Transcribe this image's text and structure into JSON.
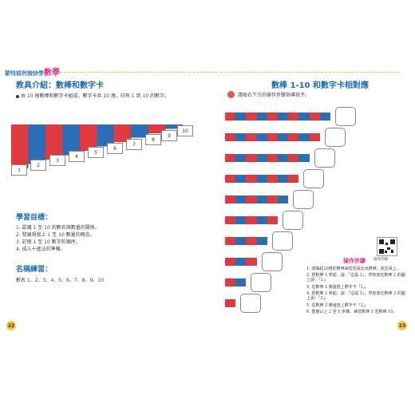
{
  "brand": {
    "prefix": "蒙特梭利",
    "middle": "愉快學",
    "big": "數學"
  },
  "left": {
    "title": "教具介紹：數棒和數字卡",
    "intro": "由 10 根數棒和數字卡組成，數字卡共 10 塊，印有 1 到 10 的數字。",
    "cards": [
      "1",
      "2",
      "3",
      "4",
      "5",
      "6",
      "7",
      "8",
      "9",
      "10"
    ],
    "goals_heading": "學習目標：",
    "goals": [
      "1. 認識 1 至 10 的數名與數量的關係。",
      "2. 發展視覺上 1 至 10 數量的概念。",
      "3. 記憶 1 至 10 數字的順序。",
      "4. 成入十進法的準備。"
    ],
    "names_heading": "名稱練習：",
    "names_line": "數名 1、2、3、4、5、6、7、8、9、10",
    "page_number": "22"
  },
  "right": {
    "title": "數棒 1-10 和數字卡相對應",
    "instruction": "請按右下方的操作步驟指導孩子。",
    "rods": [
      10,
      9,
      8,
      7,
      6,
      5,
      4,
      3,
      2,
      1
    ],
    "qr_label": "操作示範",
    "steps_title": "操作步驟",
    "steps": [
      "1. 成抽起10根的數棒由短至長比出數棒，放在桌上。",
      "2. 把數棒 1 拿起，說：「這是 1」，然後放在數棒 1 的圖上說：「1」。",
      "3. 在數棒 1 旁邊放上數字卡「1」。",
      "4. 把數棒 2 拿起，說：「這是 2」，然後放在數棒 2 的圖上說：「2」。",
      "5. 在數棒 2 旁邊放上數字卡「2」。",
      "6. 重複以上 2 至 5 步驟，練習數棒 3 至數棒 10。"
    ],
    "page_number": "23"
  },
  "colors": {
    "red": "#e03a3e",
    "blue": "#2a6fb5",
    "heading": "#1f6fb5",
    "accent": "#e2388e"
  }
}
